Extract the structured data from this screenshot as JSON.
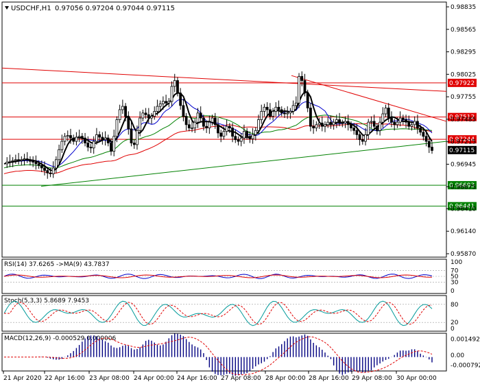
{
  "header": {
    "symbol": "USDCHF,H1",
    "ohlc": "0.97056 0.97204 0.97044 0.97115"
  },
  "chart_data": {
    "type": "candlestick",
    "symbol": "USDCHF",
    "timeframe": "H1",
    "ohlc_last": {
      "open": 0.97056,
      "high": 0.97204,
      "low": 0.97044,
      "close": 0.97115
    },
    "ylim": [
      0.9587,
      0.98835
    ],
    "y_ticks": [
      "0.98835",
      "0.98565",
      "0.98295",
      "0.98025",
      "0.97755",
      "0.97485",
      "0.97215",
      "0.96945",
      "0.96675",
      "0.96410",
      "0.96140",
      "0.95870"
    ],
    "x_ticks": [
      "21 Apr 2020",
      "22 Apr 16:00",
      "23 Apr 08:00",
      "24 Apr 00:00",
      "24 Apr 16:00",
      "27 Apr 08:00",
      "28 Apr 00:00",
      "28 Apr 16:00",
      "29 Apr 08:00",
      "30 Apr 00:00"
    ],
    "horizontal_levels": [
      {
        "value": 0.97922,
        "label": "0.97922",
        "color": "#e00000"
      },
      {
        "value": 0.97512,
        "label": "0.97512",
        "color": "#e00000"
      },
      {
        "value": 0.97244,
        "label": "0.97244",
        "color": "#e00000"
      },
      {
        "value": 0.96693,
        "label": "0.96693",
        "color": "#008000"
      },
      {
        "value": 0.96441,
        "label": "0.96441",
        "color": "#008000"
      }
    ],
    "current_price": {
      "value": 0.97115,
      "label": "0.97115"
    },
    "candles_close": [
      0.9695,
      0.9697,
      0.9698,
      0.9699,
      0.97,
      0.9699,
      0.97,
      0.9701,
      0.97,
      0.9698,
      0.9697,
      0.9695,
      0.9693,
      0.969,
      0.9687,
      0.9684,
      0.9683,
      0.969,
      0.97,
      0.9712,
      0.9722,
      0.9728,
      0.9729,
      0.9726,
      0.9722,
      0.9727,
      0.9728,
      0.9726,
      0.972,
      0.9715,
      0.9714,
      0.9722,
      0.973,
      0.9727,
      0.9724,
      0.9726,
      0.972,
      0.971,
      0.9728,
      0.9748,
      0.976,
      0.9764,
      0.9752,
      0.9737,
      0.972,
      0.9718,
      0.9735,
      0.975,
      0.9756,
      0.9754,
      0.975,
      0.9752,
      0.9758,
      0.9764,
      0.9767,
      0.977,
      0.9768,
      0.977,
      0.9788,
      0.9795,
      0.978,
      0.9765,
      0.9752,
      0.9742,
      0.9738,
      0.9738,
      0.9745,
      0.9756,
      0.975,
      0.974,
      0.9738,
      0.9745,
      0.975,
      0.9742,
      0.9732,
      0.9728,
      0.9734,
      0.974,
      0.9738,
      0.9728,
      0.9724,
      0.9722,
      0.9726,
      0.9734,
      0.9728,
      0.9725,
      0.973,
      0.9735,
      0.9748,
      0.9758,
      0.9763,
      0.976,
      0.9752,
      0.9758,
      0.9763,
      0.976,
      0.9756,
      0.9755,
      0.9756,
      0.9758,
      0.9765,
      0.9768,
      0.98,
      0.9795,
      0.978,
      0.9762,
      0.974,
      0.9738,
      0.9742,
      0.9744,
      0.974,
      0.9742,
      0.9745,
      0.9742,
      0.9745,
      0.9748,
      0.9744,
      0.9744,
      0.9746,
      0.9742,
      0.9738,
      0.9735,
      0.973,
      0.9724,
      0.9722,
      0.973,
      0.9745,
      0.9746,
      0.974,
      0.9735,
      0.9745,
      0.9755,
      0.9762,
      0.975,
      0.9745,
      0.9742,
      0.9745,
      0.975,
      0.9748,
      0.9745,
      0.974,
      0.9742,
      0.9746,
      0.9738,
      0.9733,
      0.9728,
      0.9722,
      0.9715,
      0.9711
    ],
    "indicators": [
      {
        "name": "RSI(14) 37.6265 ->MA(9) 43.7837",
        "ylim": [
          0,
          100
        ],
        "ticks": [
          "100",
          "70",
          "50",
          "30",
          "0"
        ]
      },
      {
        "name": "Stoch(5,3,3) 5.8689 7.9453",
        "ylim": [
          0,
          100
        ],
        "ticks": [
          "80",
          "20",
          "0"
        ]
      },
      {
        "name": "MACD(12,26,9) -0.000529 0.000006",
        "ylim": [
          -0.000792,
          0.001492
        ],
        "ticks": [
          "0.001492",
          "0.00",
          "-0.000792"
        ]
      }
    ]
  }
}
